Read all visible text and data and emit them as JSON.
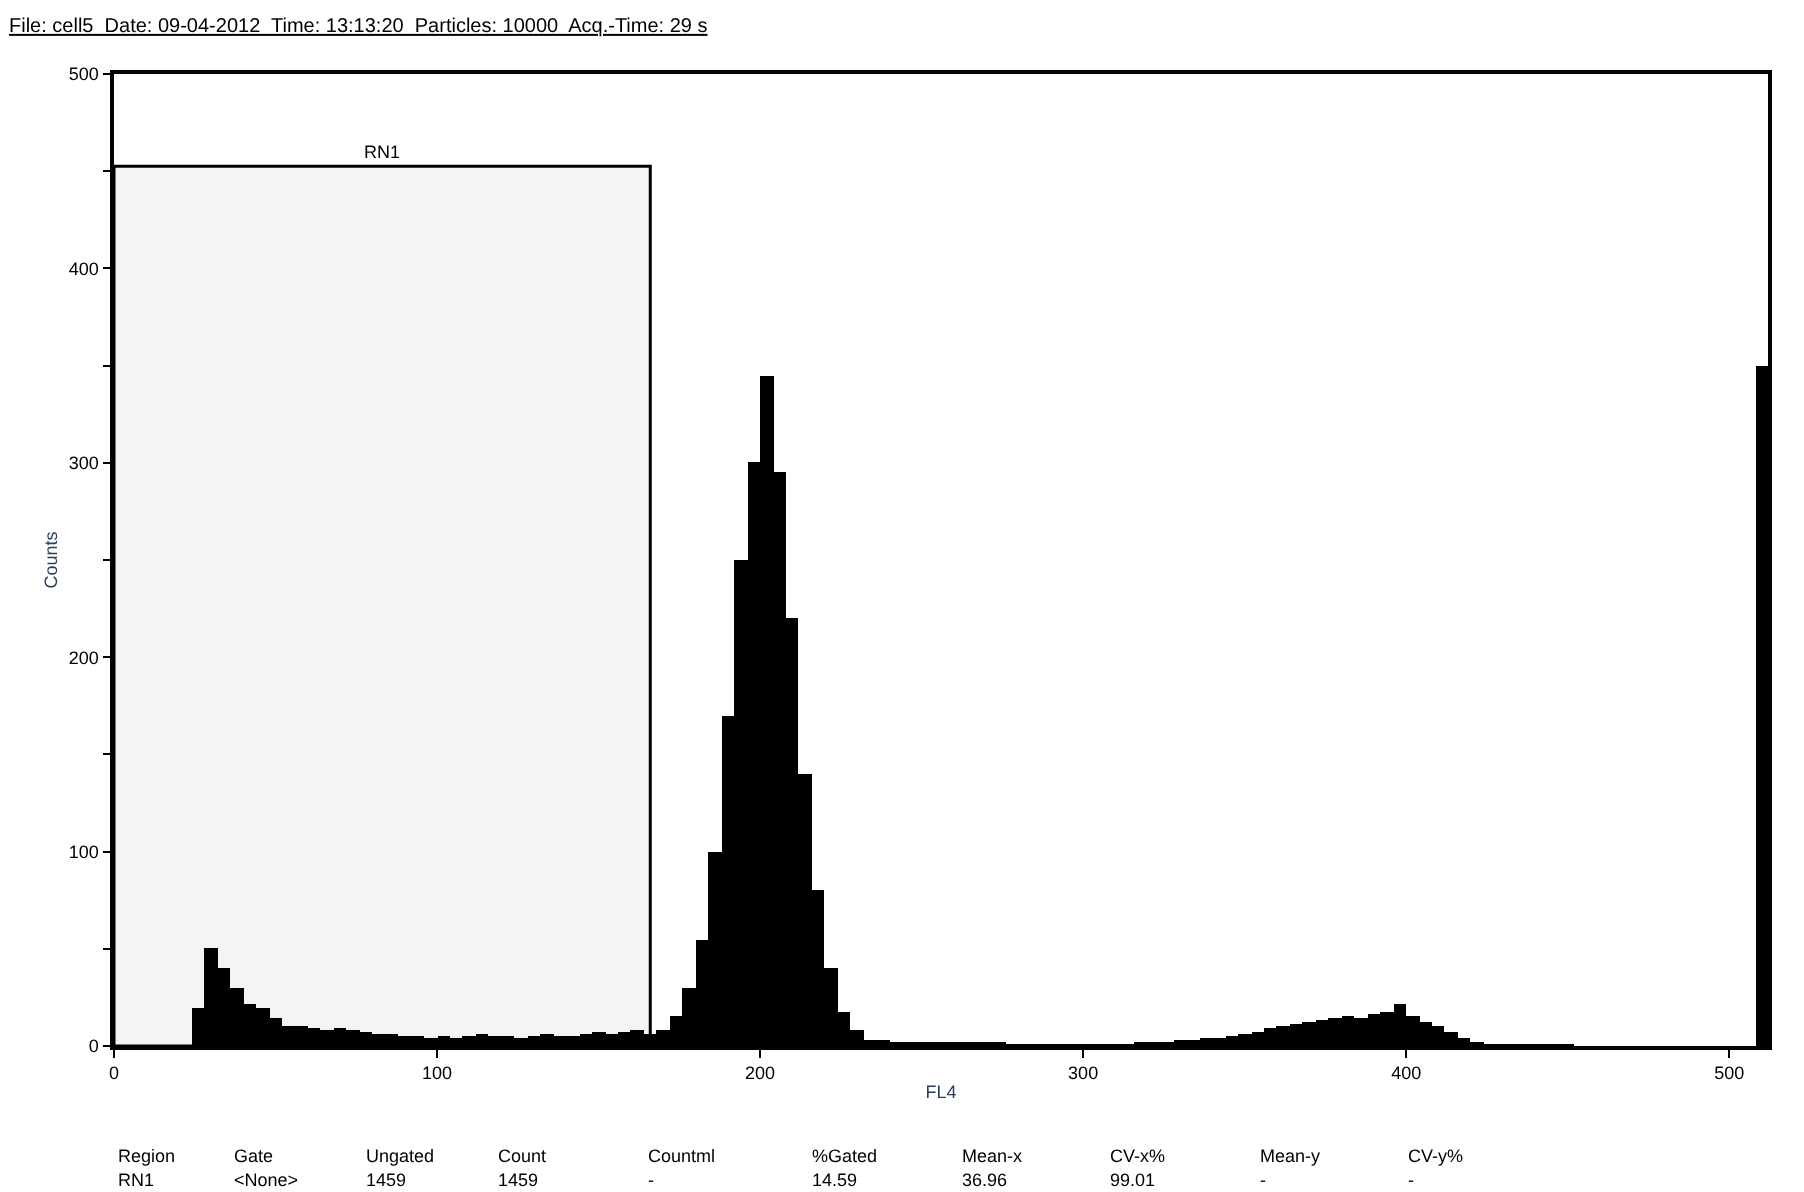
{
  "chart_data": {
    "type": "histogram",
    "title": "File: cell5  Date: 09-04-2012  Time: 13:13:20  Particles: 10000  Acq.-Time: 29 s",
    "xlabel": "FL4",
    "ylabel": "Counts",
    "color": "#000000",
    "bins": [
      0,
      4,
      8,
      12,
      16,
      20,
      24,
      28,
      32,
      36,
      40,
      44,
      48,
      52,
      56,
      60,
      64,
      68,
      72,
      76,
      80,
      84,
      88,
      92,
      96,
      100,
      104,
      108,
      112,
      116,
      120,
      124,
      128,
      132,
      136,
      140,
      144,
      148,
      152,
      156,
      160,
      164,
      168,
      172,
      176,
      180,
      184,
      188,
      192,
      196,
      200,
      204,
      208,
      212,
      216,
      220,
      224,
      228,
      232,
      236,
      240,
      244,
      248,
      252,
      256,
      260,
      264,
      268,
      272,
      276,
      280,
      284,
      288,
      292,
      296,
      300,
      304,
      308,
      312,
      316,
      320,
      324,
      328,
      332,
      336,
      340,
      344,
      348,
      352,
      356,
      360,
      364,
      368,
      372,
      376,
      380,
      384,
      388,
      392,
      396,
      400,
      404,
      408,
      412,
      416,
      420,
      424,
      428,
      432,
      436,
      440,
      444,
      448,
      452,
      456,
      460,
      464,
      468,
      472,
      476,
      480,
      484,
      488,
      492,
      496,
      500,
      504,
      508,
      512
    ],
    "values": [
      0,
      0,
      0,
      0,
      0,
      0,
      20,
      50,
      40,
      30,
      22,
      20,
      14,
      10,
      10,
      9,
      8,
      9,
      8,
      7,
      6,
      6,
      5,
      5,
      4,
      5,
      4,
      5,
      6,
      5,
      5,
      4,
      5,
      6,
      5,
      5,
      6,
      7,
      6,
      7,
      8,
      6,
      8,
      15,
      30,
      55,
      100,
      170,
      250,
      300,
      345,
      295,
      220,
      140,
      80,
      40,
      18,
      8,
      3,
      3,
      2,
      2,
      2,
      2,
      2,
      2,
      2,
      2,
      2,
      1,
      1,
      1,
      1,
      1,
      1,
      1,
      1,
      1,
      1,
      2,
      2,
      2,
      3,
      3,
      4,
      4,
      5,
      6,
      7,
      9,
      10,
      11,
      12,
      13,
      14,
      15,
      14,
      16,
      18,
      22,
      15,
      12,
      10,
      7,
      4,
      2,
      1,
      1,
      1,
      1,
      1,
      1,
      1,
      0,
      0,
      0,
      0,
      0,
      0,
      0,
      0,
      0,
      0,
      0,
      0,
      0,
      0,
      350
    ],
    "xlim": [
      0,
      512
    ],
    "xticks": [
      0,
      100,
      200,
      300,
      400,
      500
    ],
    "ylim": [
      0,
      500
    ],
    "yticks": [
      0,
      {
        "value": 50,
        "label": null
      },
      100,
      {
        "value": 150,
        "label": null
      },
      200,
      {
        "value": 250,
        "label": null
      },
      300,
      {
        "value": 350,
        "label": null
      },
      400,
      {
        "value": 450,
        "label": null
      },
      500
    ],
    "grid": false,
    "bands": [
      {
        "axis": "x",
        "from": 0,
        "to": 166,
        "label": "RN1",
        "color": "#000000"
      }
    ],
    "annotations": [
      "Region",
      "Gate",
      "Ungated",
      "Count",
      "Countml",
      "%Gated",
      "Mean-x",
      "CV-x%",
      "Mean-y",
      "CV-y%",
      "RN1",
      "<None>",
      "1459",
      "1459",
      "-",
      "14.59",
      "36.96",
      "99.01",
      "-",
      "-"
    ]
  }
}
